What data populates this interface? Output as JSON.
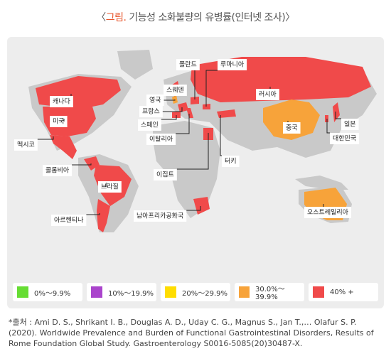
{
  "header": {
    "open": "〈",
    "title_prefix": "그림.",
    "title": " 기능성 소화불량의 유병률(인터넷 조사)〉"
  },
  "countries": [
    "폴란드",
    "루마니아",
    "스웨덴",
    "영국",
    "프랑스",
    "스페인",
    "이탈리아",
    "캐나다",
    "미국",
    "멕시코",
    "콜롬비아",
    "브라질",
    "아르헨티나",
    "러시아",
    "중국",
    "일본",
    "대한민국",
    "터키",
    "이집트",
    "남아프리카공화국",
    "오스트레일리아"
  ],
  "legend": [
    {
      "label": "0%～9.9%",
      "color": "#66dd33"
    },
    {
      "label": "10%～19.9%",
      "color": "#aa44cc"
    },
    {
      "label": "20%～29.9%",
      "color": "#ffdd00"
    },
    {
      "label": "30.0%～39.9%",
      "color": "#f7a33a"
    },
    {
      "label": "40% +",
      "color": "#f04a4a"
    }
  ],
  "source": "*출처 : Ami D. S., Shrikant I. B., Douglas A. D., Uday C. G., Magnus S., Jan T.,… Olafur S. P. (2020). Worldwide Prevalence and Burden of Functional Gastrointestinal Disorders, Results of Rome Foundation Global Study. Gastroenterology S0016-5085(20)30487-X."
}
